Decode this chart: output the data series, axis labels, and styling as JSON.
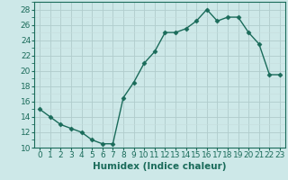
{
  "x": [
    0,
    1,
    2,
    3,
    4,
    5,
    6,
    7,
    8,
    9,
    10,
    11,
    12,
    13,
    14,
    15,
    16,
    17,
    18,
    19,
    20,
    21,
    22,
    23
  ],
  "y": [
    15.0,
    14.0,
    13.0,
    12.5,
    12.0,
    11.0,
    10.5,
    10.5,
    16.5,
    18.5,
    21.0,
    22.5,
    25.0,
    25.0,
    25.5,
    26.5,
    28.0,
    26.5,
    27.0,
    27.0,
    25.0,
    23.5,
    19.5,
    19.5
  ],
  "line_color": "#1a6b5a",
  "marker": "D",
  "marker_size": 2.5,
  "background_color": "#cde8e8",
  "grid_major_color": "#b0cccc",
  "grid_minor_color": "#c5dddd",
  "xlabel": "Humidex (Indice chaleur)",
  "xlim": [
    -0.5,
    23.5
  ],
  "ylim": [
    10,
    29
  ],
  "yticks": [
    10,
    12,
    14,
    16,
    18,
    20,
    22,
    24,
    26,
    28
  ],
  "xticks": [
    0,
    1,
    2,
    3,
    4,
    5,
    6,
    7,
    8,
    9,
    10,
    11,
    12,
    13,
    14,
    15,
    16,
    17,
    18,
    19,
    20,
    21,
    22,
    23
  ],
  "xlabel_fontsize": 7.5,
  "tick_fontsize": 6.5,
  "line_width": 1.0
}
